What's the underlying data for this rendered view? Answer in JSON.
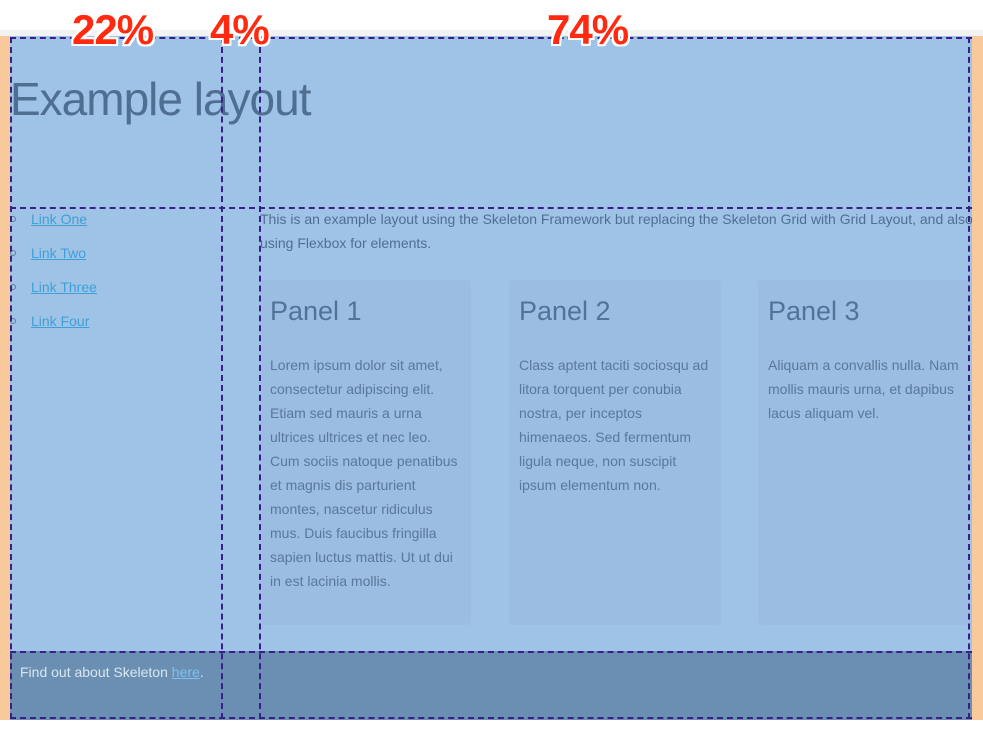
{
  "header": {
    "title": "Example layout"
  },
  "sidebar": {
    "links": [
      {
        "label": "Link One"
      },
      {
        "label": "Link Two"
      },
      {
        "label": "Link Three"
      },
      {
        "label": "Link Four"
      }
    ]
  },
  "main": {
    "intro": "This is an example layout using the Skeleton Framework but replacing the Skeleton Grid with Grid Layout, and also using Flexbox for elements.",
    "panels": [
      {
        "title": "Panel 1",
        "body": "Lorem ipsum dolor sit amet, consectetur adipiscing elit. Etiam sed mauris a urna ultrices ultrices et nec leo. Cum sociis natoque penatibus et magnis dis parturient montes, nascetur ridiculus mus. Duis faucibus fringilla sapien luctus mattis. Ut ut dui in est lacinia mollis."
      },
      {
        "title": "Panel 2",
        "body": "Class aptent taciti sociosqu ad litora torquent per conubia nostra, per inceptos himenaeos. Sed fermentum ligula neque, non suscipit ipsum elementum non."
      },
      {
        "title": "Panel 3",
        "body": "Aliquam a convallis nulla. Nam mollis mauris urna, et dapibus lacus aliquam vel."
      }
    ]
  },
  "footer": {
    "text": "Find out about Skeleton ",
    "link": "here",
    "suffix": "."
  },
  "grid_annotations": {
    "columns": [
      {
        "label": "22%"
      },
      {
        "label": "4%"
      },
      {
        "label": "74%"
      }
    ]
  },
  "colors": {
    "background_margin": "#f8c99a",
    "layout_background": "#9fc3e7",
    "footer_background": "#6a8fb3",
    "grid_line": "#3a1f8a",
    "annotation": "#ff2a10",
    "link": "#3f9fd8"
  }
}
